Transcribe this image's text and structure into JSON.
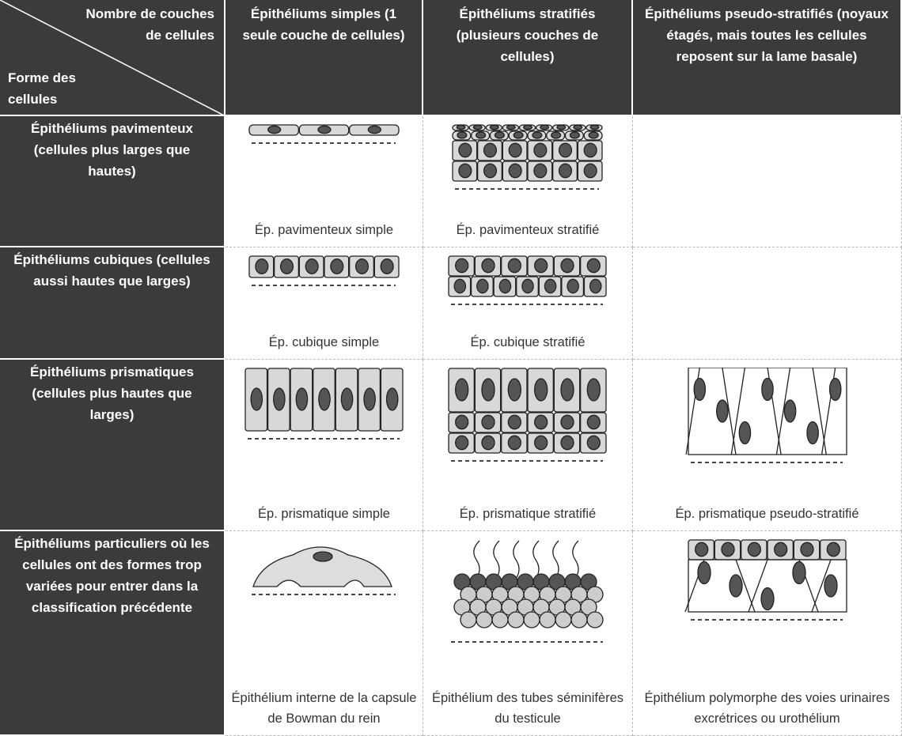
{
  "header": {
    "corner_top": "Nombre de couches de cellules",
    "corner_bottom": "Forme des cellules",
    "columns": [
      "Épithéliums simples (1 seule couche de cellules)",
      "Épithéliums stratifiés (plusieurs couches de cellules)",
      "Épithéliums pseudo-stratifiés (noyaux étagés, mais toutes les cellules reposent sur la lame basale)"
    ]
  },
  "rows": [
    {
      "label": "Épithéliums pavimenteux (cellules plus larges que hautes)",
      "cells": [
        "Ép. pavimenteux simple",
        "Ép. pavimenteux stratifié"
      ]
    },
    {
      "label": "Épithéliums cubiques (cellules aussi hautes que larges)",
      "cells": [
        "Ép. cubique simple",
        "Ép. cubique stratifié"
      ]
    },
    {
      "label": "Épithéliums prismatiques (cellules plus hautes que larges)",
      "cells": [
        "Ép. prismatique simple",
        "Ép. prismatique stratifié",
        "Ép. prismatique pseudo-stratifié"
      ]
    },
    {
      "label": "Épithéliums particuliers où les cellules ont des formes trop variées pour entrer dans la classification précédente",
      "cells": [
        "Épithélium interne de la capsule de Bowman du rein",
        "Épithélium des tubes séminifères du testicule",
        "Épithélium polymorphe des voies urinaires excrétrices ou urothélium"
      ]
    }
  ]
}
